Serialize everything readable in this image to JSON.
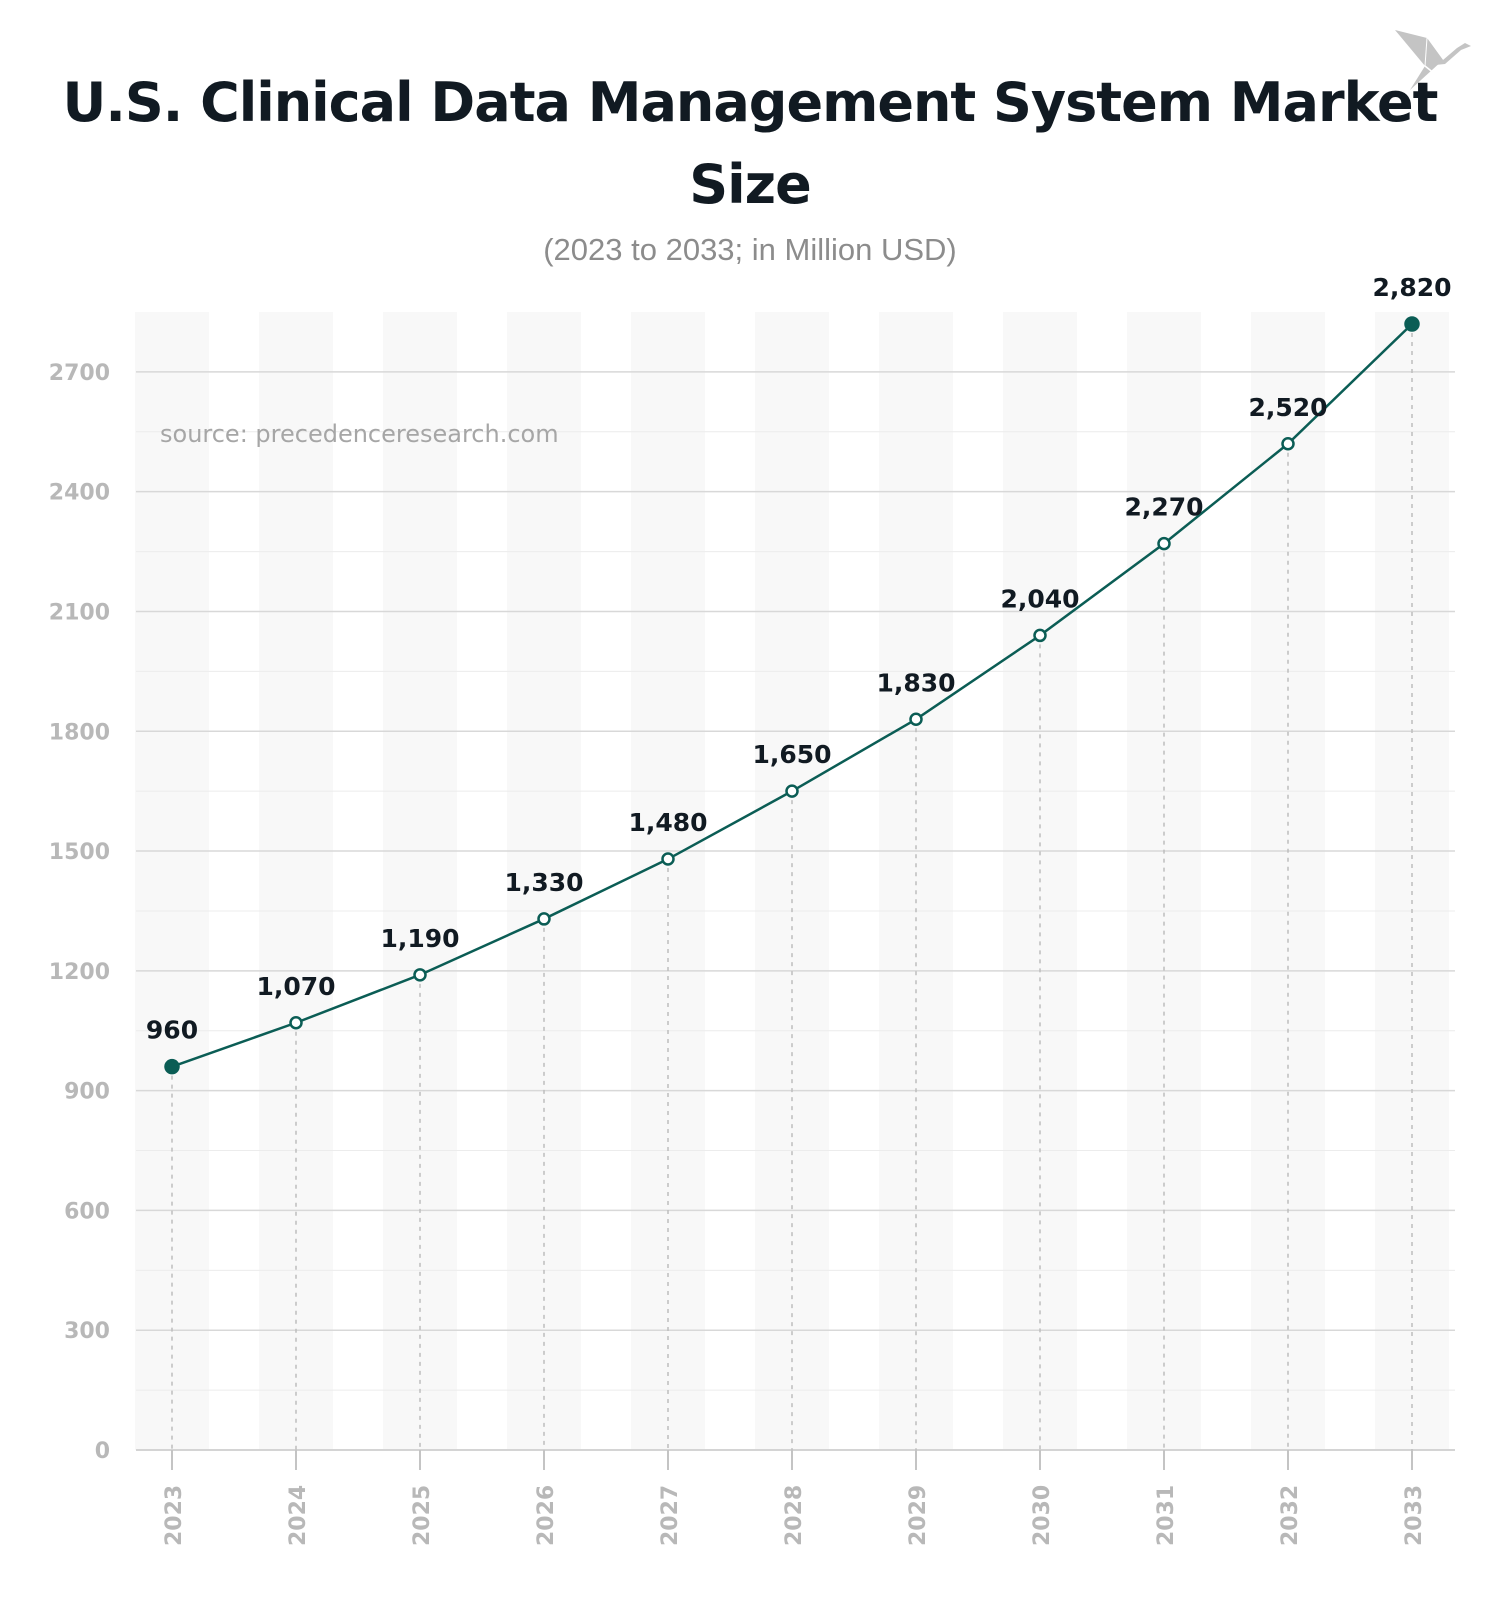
{
  "title": "U.S. Clinical Data Management System Market Size",
  "subtitle": "(2023 to 2033; in Million USD)",
  "source": "source: precedenceresearch.com",
  "colors": {
    "line": "#0b5d55",
    "point_fill": "#ffffff",
    "endpoint_fill": "#0b5d55",
    "axis_text": "#b8b8b8",
    "label_text": "#111a22",
    "stripe": "#f8f8f8"
  },
  "logo_icon": "origami-bird-icon",
  "chart_data": {
    "type": "line",
    "title": "U.S. Clinical Data Management System Market Size",
    "subtitle": "(2023 to 2033; in Million USD)",
    "categories": [
      "2023",
      "2024",
      "2025",
      "2026",
      "2027",
      "2028",
      "2029",
      "2030",
      "2031",
      "2032",
      "2033"
    ],
    "values": [
      960,
      1070,
      1190,
      1330,
      1480,
      1650,
      1830,
      2040,
      2270,
      2520,
      2820
    ],
    "data_labels": [
      "960",
      "1,070",
      "1,190",
      "1,330",
      "1,480",
      "1,650",
      "1,830",
      "2,040",
      "2,270",
      "2,520",
      "2,820"
    ],
    "yticks": [
      0,
      300,
      600,
      900,
      1200,
      1500,
      1800,
      2100,
      2400,
      2700
    ],
    "ylim": [
      0,
      2850
    ],
    "grid": true,
    "legend": "none"
  }
}
